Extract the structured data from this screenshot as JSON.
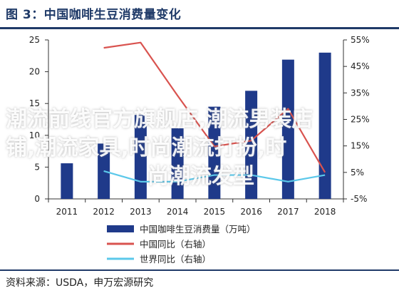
{
  "title": "图 3：中国咖啡生豆消费量变化",
  "source": "资料来源：USDA，申万宏源研究",
  "watermark": {
    "line1": "潮流前线官方旗舰店,潮流男装店",
    "line2": "铺,潮流家具,时尚潮流打扮,时",
    "line3": "尚潮流发型"
  },
  "colors": {
    "bars": "#1f3a8a",
    "china_yoy": "#d9534f",
    "world_yoy": "#5bc8ea",
    "axis_text": "#222222",
    "title": "#1f3a68"
  },
  "chart_data": {
    "type": "bar",
    "categories": [
      "2011",
      "2012",
      "2013",
      "2014",
      "2015",
      "2016",
      "2017",
      "2018"
    ],
    "ylim_left": [
      0,
      25
    ],
    "yticks_left": [
      0,
      5,
      10,
      15,
      20,
      25
    ],
    "ytick_labels_left": [
      "0",
      "5",
      "10",
      "15",
      "20",
      "25"
    ],
    "ylim_right": [
      -5,
      55
    ],
    "yticks_right": [
      -5,
      5,
      15,
      25,
      35,
      45,
      55
    ],
    "ytick_labels_right": [
      "-5%",
      "5%",
      "15%",
      "25%",
      "35%",
      "45%",
      "55%"
    ],
    "series": [
      {
        "name": "中国咖啡生豆消费量（万吨）",
        "type": "bar",
        "axis": "left",
        "values": [
          5.6,
          8.7,
          13.2,
          11.1,
          14.5,
          17.0,
          21.9,
          23.0
        ]
      },
      {
        "name": "中国同比（右轴）",
        "type": "line",
        "axis": "right",
        "values": [
          null,
          52.0,
          54.0,
          34.0,
          14.8,
          17.0,
          29.0,
          5.0
        ]
      },
      {
        "name": "世界同比（右轴）",
        "type": "line",
        "axis": "right",
        "values": [
          null,
          5.5,
          1.5,
          1.5,
          4.0,
          4.0,
          1.5,
          4.0
        ]
      }
    ]
  }
}
